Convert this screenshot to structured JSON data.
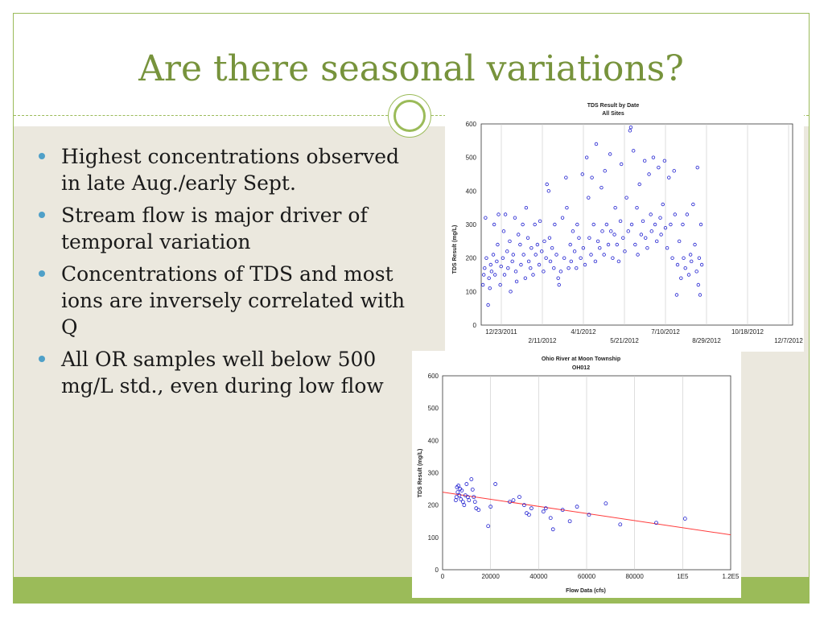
{
  "slide": {
    "title": "Are there seasonal variations?",
    "bullets": [
      "Highest concentrations observed in late Aug./early Sept.",
      "Stream flow is major driver of temporal variation",
      "Concentrations of TDS and most ions are inversely correlated with Q",
      "All OR samples well below 500 mg/L std., even during low flow"
    ]
  },
  "colors": {
    "accent": "#9bbb59",
    "title": "#77933c",
    "bullet": "#4fa0c8",
    "marker": "#1f1fd0",
    "trend": "#ff3b3b"
  },
  "chart_data": [
    {
      "type": "scatter",
      "title": "TDS Result by Date",
      "subtitle": "All Sites",
      "xlabel": "",
      "ylabel": "TDS Result (mg/L)",
      "ylim": [
        0,
        600
      ],
      "y_ticks": [
        "0",
        "100",
        "200",
        "300",
        "400",
        "500",
        "600"
      ],
      "x_ticks_top": [
        "12/23/2011",
        "4/1/2012",
        "7/10/2012",
        "10/18/2012"
      ],
      "x_ticks_bottom": [
        "2/11/2012",
        "5/21/2012",
        "8/29/2012",
        "12/7/2012"
      ],
      "xlim_days": [
        0,
        360
      ],
      "grid": "vertical",
      "note": "many hundreds of samples; representative points listed as [days since 12/23/2011, mg/L]",
      "points": [
        [
          2,
          120
        ],
        [
          3,
          150
        ],
        [
          4,
          170
        ],
        [
          5,
          320
        ],
        [
          6,
          200
        ],
        [
          8,
          60
        ],
        [
          9,
          140
        ],
        [
          10,
          110
        ],
        [
          11,
          180
        ],
        [
          12,
          160
        ],
        [
          14,
          210
        ],
        [
          15,
          300
        ],
        [
          16,
          150
        ],
        [
          18,
          190
        ],
        [
          19,
          240
        ],
        [
          20,
          330
        ],
        [
          22,
          120
        ],
        [
          23,
          175
        ],
        [
          25,
          200
        ],
        [
          26,
          280
        ],
        [
          27,
          150
        ],
        [
          28,
          330
        ],
        [
          30,
          220
        ],
        [
          31,
          170
        ],
        [
          33,
          250
        ],
        [
          34,
          100
        ],
        [
          36,
          190
        ],
        [
          37,
          210
        ],
        [
          39,
          320
        ],
        [
          40,
          160
        ],
        [
          41,
          130
        ],
        [
          43,
          270
        ],
        [
          45,
          240
        ],
        [
          46,
          180
        ],
        [
          48,
          300
        ],
        [
          49,
          210
        ],
        [
          51,
          140
        ],
        [
          52,
          350
        ],
        [
          54,
          260
        ],
        [
          55,
          190
        ],
        [
          57,
          170
        ],
        [
          58,
          230
        ],
        [
          60,
          150
        ],
        [
          62,
          300
        ],
        [
          63,
          210
        ],
        [
          65,
          240
        ],
        [
          67,
          180
        ],
        [
          68,
          310
        ],
        [
          70,
          220
        ],
        [
          72,
          160
        ],
        [
          73,
          250
        ],
        [
          75,
          200
        ],
        [
          76,
          420
        ],
        [
          78,
          400
        ],
        [
          79,
          260
        ],
        [
          80,
          190
        ],
        [
          82,
          230
        ],
        [
          84,
          170
        ],
        [
          85,
          300
        ],
        [
          87,
          210
        ],
        [
          89,
          140
        ],
        [
          90,
          120
        ],
        [
          92,
          160
        ],
        [
          94,
          320
        ],
        [
          96,
          200
        ],
        [
          98,
          440
        ],
        [
          99,
          350
        ],
        [
          101,
          170
        ],
        [
          103,
          240
        ],
        [
          104,
          190
        ],
        [
          106,
          280
        ],
        [
          108,
          220
        ],
        [
          110,
          170
        ],
        [
          111,
          300
        ],
        [
          113,
          260
        ],
        [
          115,
          200
        ],
        [
          117,
          450
        ],
        [
          118,
          230
        ],
        [
          120,
          180
        ],
        [
          122,
          500
        ],
        [
          124,
          380
        ],
        [
          125,
          260
        ],
        [
          127,
          210
        ],
        [
          128,
          440
        ],
        [
          130,
          300
        ],
        [
          132,
          190
        ],
        [
          133,
          540
        ],
        [
          135,
          250
        ],
        [
          137,
          230
        ],
        [
          139,
          410
        ],
        [
          140,
          280
        ],
        [
          142,
          210
        ],
        [
          143,
          460
        ],
        [
          145,
          300
        ],
        [
          147,
          240
        ],
        [
          149,
          510
        ],
        [
          150,
          280
        ],
        [
          152,
          200
        ],
        [
          154,
          270
        ],
        [
          155,
          350
        ],
        [
          157,
          240
        ],
        [
          159,
          190
        ],
        [
          161,
          310
        ],
        [
          162,
          480
        ],
        [
          164,
          260
        ],
        [
          166,
          220
        ],
        [
          168,
          380
        ],
        [
          170,
          280
        ],
        [
          172,
          580
        ],
        [
          173,
          590
        ],
        [
          174,
          300
        ],
        [
          176,
          520
        ],
        [
          178,
          240
        ],
        [
          180,
          350
        ],
        [
          181,
          210
        ],
        [
          183,
          420
        ],
        [
          185,
          270
        ],
        [
          187,
          310
        ],
        [
          189,
          490
        ],
        [
          190,
          260
        ],
        [
          192,
          230
        ],
        [
          194,
          450
        ],
        [
          196,
          330
        ],
        [
          197,
          280
        ],
        [
          199,
          500
        ],
        [
          201,
          300
        ],
        [
          203,
          250
        ],
        [
          205,
          470
        ],
        [
          207,
          320
        ],
        [
          208,
          270
        ],
        [
          210,
          360
        ],
        [
          212,
          490
        ],
        [
          213,
          290
        ],
        [
          215,
          230
        ],
        [
          217,
          440
        ],
        [
          219,
          300
        ],
        [
          221,
          200
        ],
        [
          223,
          460
        ],
        [
          224,
          330
        ],
        [
          226,
          90
        ],
        [
          227,
          180
        ],
        [
          229,
          250
        ],
        [
          231,
          140
        ],
        [
          233,
          300
        ],
        [
          234,
          200
        ],
        [
          236,
          170
        ],
        [
          238,
          330
        ],
        [
          240,
          150
        ],
        [
          242,
          210
        ],
        [
          243,
          190
        ],
        [
          245,
          360
        ],
        [
          247,
          240
        ],
        [
          249,
          160
        ],
        [
          250,
          470
        ],
        [
          251,
          120
        ],
        [
          252,
          200
        ],
        [
          253,
          90
        ],
        [
          254,
          300
        ],
        [
          255,
          180
        ]
      ]
    },
    {
      "type": "scatter",
      "title": "Ohio River at Moon Township",
      "subtitle": "OH012",
      "xlabel": "Flow Data (cfs)",
      "ylabel": "TDS Result (mg/L)",
      "xlim": [
        0,
        120000
      ],
      "ylim": [
        0,
        600
      ],
      "x_ticks": [
        "0",
        "20000",
        "40000",
        "60000",
        "80000",
        "1E5",
        "1.2E5"
      ],
      "y_ticks": [
        "0",
        "100",
        "200",
        "300",
        "400",
        "500",
        "600"
      ],
      "grid": "vertical",
      "points": [
        [
          5500,
          215
        ],
        [
          5800,
          225
        ],
        [
          6000,
          255
        ],
        [
          6300,
          240
        ],
        [
          6600,
          260
        ],
        [
          7000,
          230
        ],
        [
          7300,
          250
        ],
        [
          7600,
          218
        ],
        [
          8000,
          245
        ],
        [
          8500,
          210
        ],
        [
          9000,
          200
        ],
        [
          9500,
          230
        ],
        [
          10000,
          265
        ],
        [
          10500,
          225
        ],
        [
          11000,
          215
        ],
        [
          12000,
          280
        ],
        [
          12500,
          248
        ],
        [
          13000,
          225
        ],
        [
          13500,
          210
        ],
        [
          14000,
          190
        ],
        [
          15000,
          185
        ],
        [
          19000,
          135
        ],
        [
          20000,
          195
        ],
        [
          22000,
          265
        ],
        [
          28000,
          210
        ],
        [
          29500,
          215
        ],
        [
          32000,
          225
        ],
        [
          34000,
          200
        ],
        [
          35000,
          175
        ],
        [
          36000,
          170
        ],
        [
          37000,
          190
        ],
        [
          42000,
          180
        ],
        [
          43000,
          190
        ],
        [
          45000,
          160
        ],
        [
          46000,
          125
        ],
        [
          50000,
          185
        ],
        [
          53000,
          150
        ],
        [
          56000,
          195
        ],
        [
          61000,
          170
        ],
        [
          68000,
          205
        ],
        [
          74000,
          140
        ],
        [
          89000,
          145
        ],
        [
          101000,
          158
        ]
      ],
      "trendline": {
        "x": [
          0,
          120000
        ],
        "y": [
          240,
          108
        ]
      }
    }
  ]
}
